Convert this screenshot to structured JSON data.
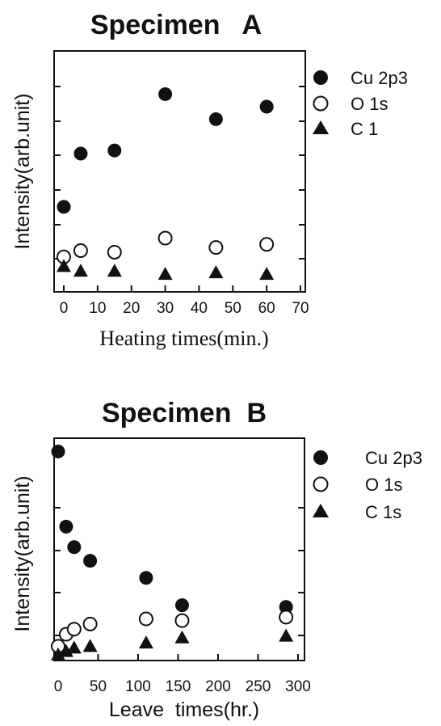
{
  "chart_data": [
    {
      "type": "scatter",
      "title": "Specimen   A",
      "xlabel": "Heating times(min.)",
      "ylabel": "Intensity(arb.unit)",
      "xlim": [
        0,
        70
      ],
      "ylim": [
        0,
        7
      ],
      "xticks": [
        0,
        10,
        20,
        30,
        40,
        50,
        60,
        70
      ],
      "xtick_labels": [
        "0",
        "10",
        "20",
        "30",
        "40",
        "50",
        "60",
        "70"
      ],
      "y_tick_labels_shown": false,
      "grid": false,
      "legend_position": "right",
      "series": [
        {
          "name": "Cu 2p3",
          "marker": "filled-circle",
          "x": [
            0,
            5,
            15,
            30,
            45,
            60
          ],
          "y": [
            2.2,
            3.9,
            4.0,
            5.8,
            5.0,
            5.4
          ]
        },
        {
          "name": "O 1s",
          "marker": "open-circle",
          "x": [
            0,
            5,
            15,
            30,
            45,
            60
          ],
          "y": [
            0.6,
            0.8,
            0.75,
            1.2,
            0.9,
            1.0
          ]
        },
        {
          "name": "C 1",
          "marker": "filled-triangle",
          "x": [
            0,
            5,
            15,
            30,
            45,
            60
          ],
          "y": [
            0.3,
            0.15,
            0.15,
            0.05,
            0.1,
            0.05
          ]
        }
      ]
    },
    {
      "type": "scatter",
      "title": "Specimen  B",
      "xlabel": "Leave  times(hr.)",
      "ylabel": "Intensity(arb.unit)",
      "xlim": [
        0,
        300
      ],
      "ylim": [
        0,
        6.2
      ],
      "xticks": [
        0,
        50,
        100,
        150,
        200,
        250,
        300
      ],
      "xtick_labels": [
        "0",
        "50",
        "100",
        "150",
        "200",
        "250",
        "300"
      ],
      "y_tick_labels_shown": false,
      "grid": false,
      "legend_position": "right",
      "series": [
        {
          "name": "Cu 2p3",
          "marker": "filled-circle",
          "x": [
            0,
            10,
            20,
            40,
            110,
            155,
            285
          ],
          "y": [
            6.0,
            3.8,
            3.2,
            2.8,
            2.3,
            1.5,
            1.45
          ]
        },
        {
          "name": "O 1s",
          "marker": "open-circle",
          "x": [
            0,
            10,
            20,
            40,
            110,
            155,
            285
          ],
          "y": [
            0.3,
            0.65,
            0.8,
            0.95,
            1.1,
            1.05,
            1.15
          ]
        },
        {
          "name": "C 1s",
          "marker": "filled-triangle",
          "x": [
            0,
            10,
            20,
            40,
            110,
            155,
            285
          ],
          "y": [
            0.05,
            0.15,
            0.25,
            0.3,
            0.4,
            0.55,
            0.6
          ]
        }
      ]
    }
  ]
}
